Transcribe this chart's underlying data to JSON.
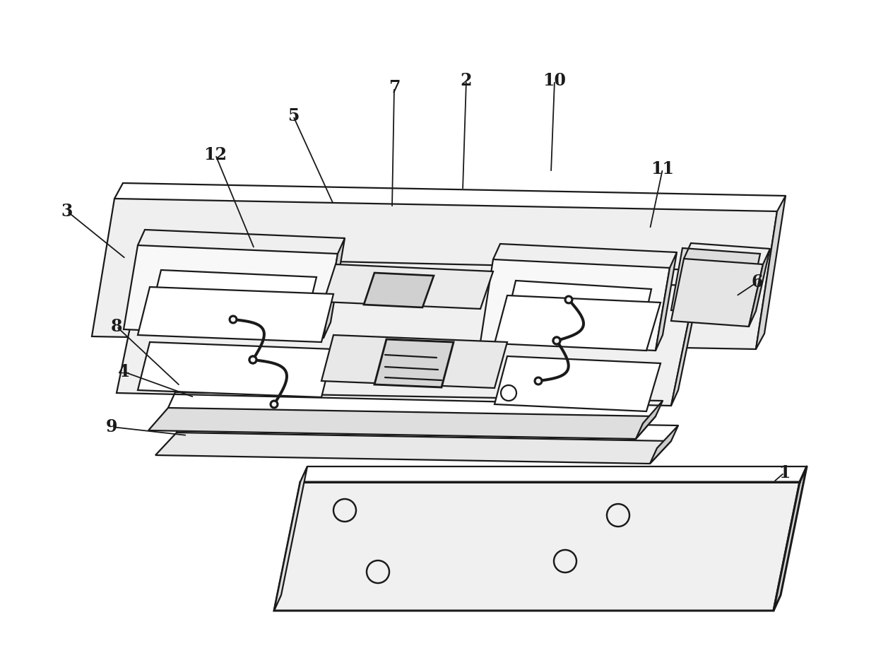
{
  "bg_color": "#ffffff",
  "line_color": "#1a1a1a",
  "lw": 1.6,
  "lw_thick": 2.2,
  "fill_top": "#f2f2f2",
  "fill_side": "#d8d8d8",
  "fill_mid": "#efefef",
  "fill_bot": "#f5f5f5",
  "figsize": [
    12.4,
    9.14
  ],
  "dpi": 100
}
